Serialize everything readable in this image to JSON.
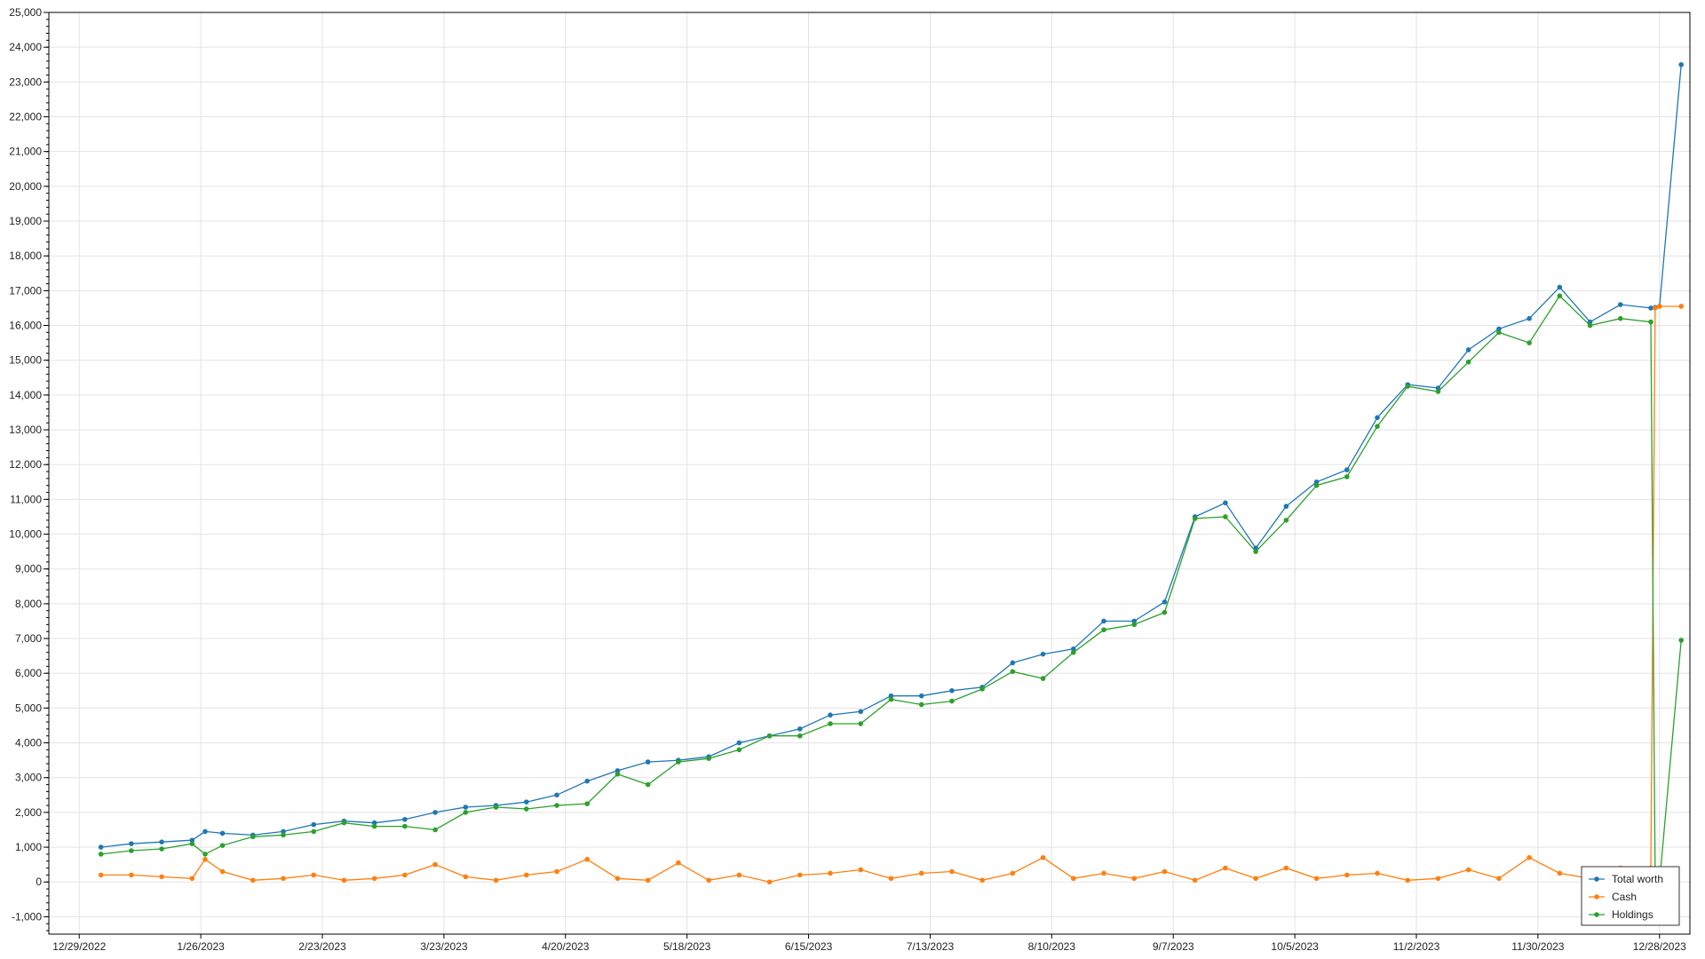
{
  "chart_data": {
    "type": "line",
    "title": "",
    "xlabel": "",
    "ylabel": "",
    "ylim": [
      -1500,
      25000
    ],
    "xlim": [
      "2022-12-22",
      "2024-01-04"
    ],
    "y_ticks": [
      -1000,
      0,
      1000,
      2000,
      3000,
      4000,
      5000,
      6000,
      7000,
      8000,
      9000,
      10000,
      11000,
      12000,
      13000,
      14000,
      15000,
      16000,
      17000,
      18000,
      19000,
      20000,
      21000,
      22000,
      23000,
      24000,
      25000
    ],
    "y_tick_labels": [
      "-1,000",
      "0",
      "1,000",
      "2,000",
      "3,000",
      "4,000",
      "5,000",
      "6,000",
      "7,000",
      "8,000",
      "9,000",
      "10,000",
      "11,000",
      "12,000",
      "13,000",
      "14,000",
      "15,000",
      "16,000",
      "17,000",
      "18,000",
      "19,000",
      "20,000",
      "21,000",
      "22,000",
      "23,000",
      "24,000",
      "25,000"
    ],
    "x_ticks": [
      "2022-12-29",
      "2023-01-26",
      "2023-02-23",
      "2023-03-23",
      "2023-04-20",
      "2023-05-18",
      "2023-06-15",
      "2023-07-13",
      "2023-08-10",
      "2023-09-07",
      "2023-10-05",
      "2023-11-02",
      "2023-11-30",
      "2023-12-28"
    ],
    "x_tick_labels": [
      "12/29/2022",
      "1/26/2023",
      "2/23/2023",
      "3/23/2023",
      "4/20/2023",
      "5/18/2023",
      "6/15/2023",
      "7/13/2023",
      "8/10/2023",
      "9/7/2023",
      "10/5/2023",
      "11/2/2023",
      "11/30/2023",
      "12/28/2023"
    ],
    "grid": true,
    "legend_position": "bottom-right",
    "x": [
      "2023-01-03",
      "2023-01-10",
      "2023-01-17",
      "2023-01-24",
      "2023-01-27",
      "2023-01-31",
      "2023-02-07",
      "2023-02-14",
      "2023-02-21",
      "2023-02-28",
      "2023-03-07",
      "2023-03-14",
      "2023-03-21",
      "2023-03-28",
      "2023-04-04",
      "2023-04-11",
      "2023-04-18",
      "2023-04-25",
      "2023-05-02",
      "2023-05-09",
      "2023-05-16",
      "2023-05-23",
      "2023-05-30",
      "2023-06-06",
      "2023-06-13",
      "2023-06-20",
      "2023-06-27",
      "2023-07-04",
      "2023-07-11",
      "2023-07-18",
      "2023-07-25",
      "2023-08-01",
      "2023-08-08",
      "2023-08-15",
      "2023-08-22",
      "2023-08-29",
      "2023-09-05",
      "2023-09-12",
      "2023-09-19",
      "2023-09-26",
      "2023-10-03",
      "2023-10-10",
      "2023-10-17",
      "2023-10-24",
      "2023-10-31",
      "2023-11-07",
      "2023-11-14",
      "2023-11-21",
      "2023-11-28",
      "2023-12-05",
      "2023-12-12",
      "2023-12-19",
      "2023-12-26",
      "2023-12-27",
      "2023-12-28",
      "2024-01-02"
    ],
    "series": [
      {
        "name": "Total worth",
        "color": "#1f77b4",
        "values": [
          1000,
          1100,
          1150,
          1200,
          1450,
          1400,
          1350,
          1450,
          1650,
          1750,
          1700,
          1800,
          2000,
          2150,
          2200,
          2300,
          2500,
          2900,
          3200,
          3450,
          3500,
          3600,
          4000,
          4200,
          4400,
          4800,
          4900,
          5350,
          5350,
          5500,
          5600,
          6300,
          6550,
          6700,
          7500,
          7500,
          8050,
          10500,
          10900,
          9600,
          10800,
          11500,
          11850,
          13350,
          14300,
          14200,
          15300,
          15900,
          16200,
          17100,
          16100,
          16600,
          16500,
          16520,
          16550,
          23500
        ]
      },
      {
        "name": "Cash",
        "color": "#ff7f0e",
        "values": [
          200,
          200,
          150,
          100,
          650,
          300,
          50,
          100,
          200,
          50,
          100,
          200,
          500,
          150,
          50,
          200,
          300,
          650,
          100,
          50,
          550,
          50,
          200,
          0,
          200,
          250,
          350,
          100,
          250,
          300,
          50,
          250,
          700,
          100,
          250,
          100,
          300,
          50,
          400,
          100,
          400,
          100,
          200,
          250,
          50,
          100,
          350,
          100,
          700,
          250,
          100,
          400,
          400,
          16500,
          16550,
          16550
        ]
      },
      {
        "name": "Holdings",
        "color": "#2ca02c",
        "values": [
          800,
          900,
          950,
          1100,
          800,
          1050,
          1300,
          1350,
          1450,
          1700,
          1600,
          1600,
          1500,
          2000,
          2150,
          2100,
          2200,
          2250,
          3100,
          2800,
          3450,
          3550,
          3800,
          4200,
          4200,
          4550,
          4550,
          5250,
          5100,
          5200,
          5550,
          6050,
          5850,
          6600,
          7250,
          7400,
          7750,
          10450,
          10500,
          9500,
          10400,
          11400,
          11650,
          13100,
          14250,
          14100,
          14950,
          15800,
          15500,
          16850,
          16000,
          16200,
          16100,
          20,
          0,
          6950
        ]
      }
    ]
  }
}
